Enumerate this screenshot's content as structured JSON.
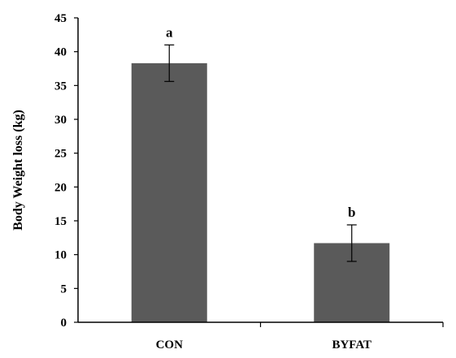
{
  "chart_data": {
    "type": "bar",
    "title": "",
    "xlabel": "",
    "ylabel": "Body Weight loss (kg)",
    "categories": [
      "CON",
      "BYFAT"
    ],
    "values": [
      38.3,
      11.7
    ],
    "errors": [
      2.7,
      2.7
    ],
    "significance_labels": [
      "a",
      "b"
    ],
    "ylim": [
      0,
      45
    ],
    "yticks": [
      0,
      5,
      10,
      15,
      20,
      25,
      30,
      35,
      40,
      45
    ],
    "grid": false,
    "bar_color": "#5a5a5a"
  }
}
